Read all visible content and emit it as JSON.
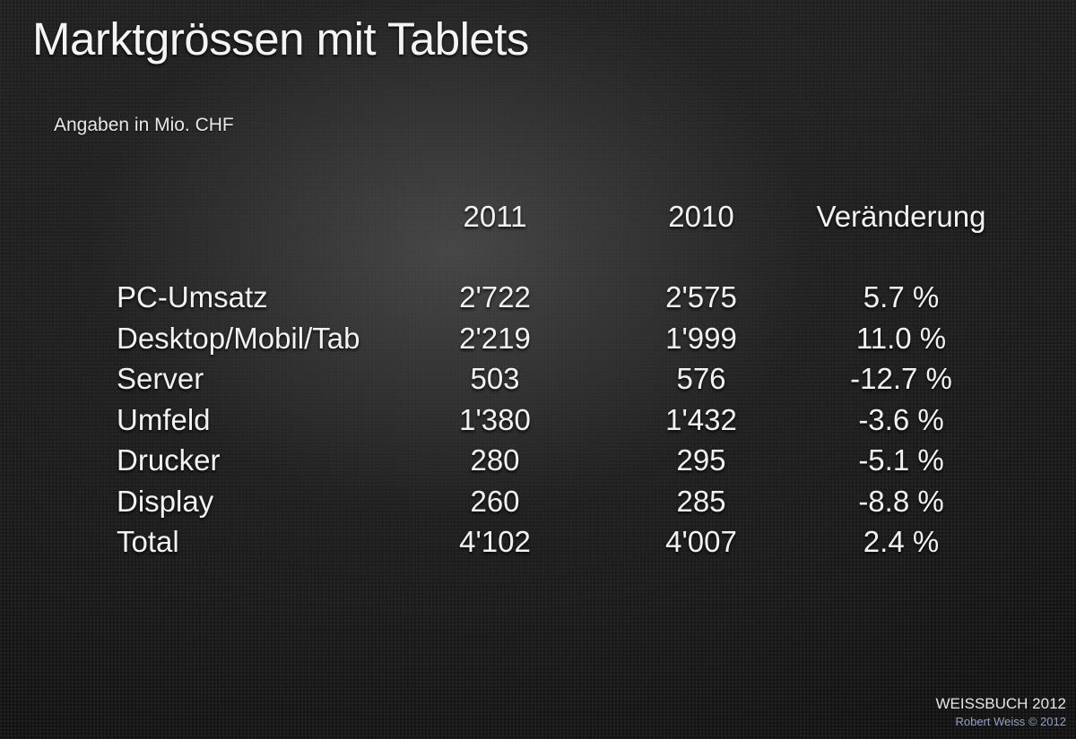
{
  "chart_data": {
    "type": "table",
    "title": "Marktgrössen mit Tablets",
    "subtitle": "Angaben in Mio. CHF",
    "columns": [
      "",
      "2011",
      "2010",
      "Veränderung"
    ],
    "rows": [
      {
        "label": "PC-Umsatz",
        "y2011": "2'722",
        "y2010": "2'575",
        "change": "5.7 %"
      },
      {
        "label": "Desktop/Mobil/Tab",
        "y2011": "2'219",
        "y2010": "1'999",
        "change": "11.0 %"
      },
      {
        "label": "Server",
        "y2011": "503",
        "y2010": "576",
        "change": "-12.7 %"
      },
      {
        "label": "Umfeld",
        "y2011": "1'380",
        "y2010": "1'432",
        "change": "-3.6 %"
      },
      {
        "label": "Drucker",
        "y2011": "280",
        "y2010": "295",
        "change": "-5.1 %"
      },
      {
        "label": "Display",
        "y2011": "260",
        "y2010": "285",
        "change": "-8.8 %"
      },
      {
        "label": "Total",
        "y2011": "4'102",
        "y2010": "4'007",
        "change": "2.4 %"
      }
    ]
  },
  "footer": {
    "brand": "WEISSBUCH 2012",
    "copyright": "Robert Weiss © 2012"
  }
}
